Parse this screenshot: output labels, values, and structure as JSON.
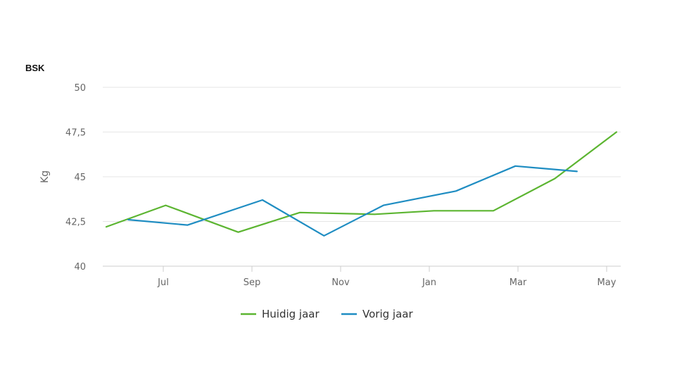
{
  "chart_data": {
    "type": "line",
    "title": "BSK",
    "ylabel": "Kg",
    "xlabel": "",
    "ylim": [
      40,
      50
    ],
    "yticks": [
      40,
      42.5,
      45,
      47.5,
      50
    ],
    "ytick_labels": [
      "40",
      "42,5",
      "45",
      "47,5",
      "50"
    ],
    "xticks": [
      "Jul",
      "Sep",
      "Nov",
      "Jan",
      "Mar",
      "May"
    ],
    "grid": true,
    "legend_position": "bottom",
    "series": [
      {
        "name": "Huidig jaar",
        "color": "#5cb531",
        "points": [
          {
            "x": 0.0,
            "y": 42.2
          },
          {
            "x": 1.35,
            "y": 43.4
          },
          {
            "x": 3.0,
            "y": 41.9
          },
          {
            "x": 4.4,
            "y": 43.0
          },
          {
            "x": 6.1,
            "y": 42.9
          },
          {
            "x": 7.45,
            "y": 43.1
          },
          {
            "x": 8.8,
            "y": 43.1
          },
          {
            "x": 10.2,
            "y": 44.9
          },
          {
            "x": 11.6,
            "y": 47.5
          }
        ]
      },
      {
        "name": "Vorig jaar",
        "color": "#1f8dc2",
        "points": [
          {
            "x": 0.5,
            "y": 42.6
          },
          {
            "x": 1.85,
            "y": 42.3
          },
          {
            "x": 3.55,
            "y": 43.7
          },
          {
            "x": 4.95,
            "y": 41.7
          },
          {
            "x": 6.3,
            "y": 43.4
          },
          {
            "x": 7.95,
            "y": 44.2
          },
          {
            "x": 9.3,
            "y": 45.6
          },
          {
            "x": 10.7,
            "y": 45.3
          }
        ]
      }
    ]
  }
}
